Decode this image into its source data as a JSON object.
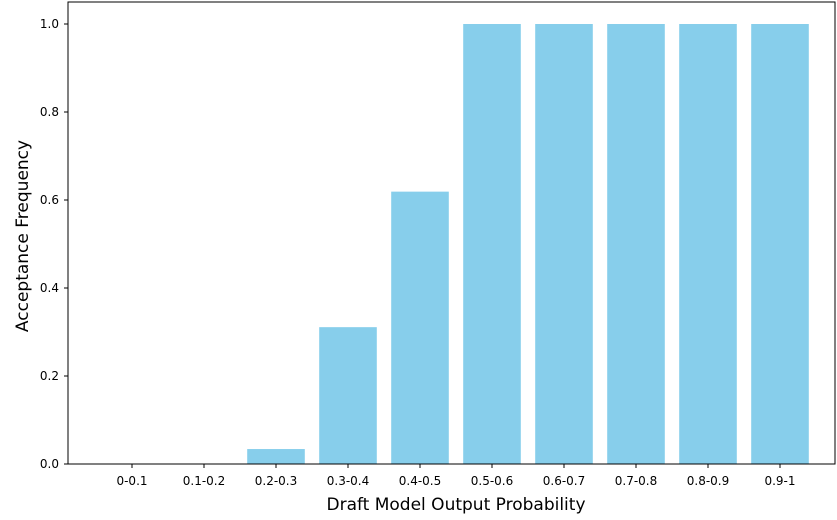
{
  "chart_data": {
    "type": "bar",
    "title": "",
    "xlabel": "Draft Model Output Probability",
    "ylabel": "Acceptance Frequency",
    "categories": [
      "0-0.1",
      "0.1-0.2",
      "0.2-0.3",
      "0.3-0.4",
      "0.4-0.5",
      "0.5-0.6",
      "0.6-0.7",
      "0.7-0.8",
      "0.8-0.9",
      "0.9-1"
    ],
    "values": [
      0.0,
      0.0,
      0.034,
      0.311,
      0.619,
      1.0,
      1.0,
      1.0,
      1.0,
      1.0
    ],
    "ylim": [
      0,
      1.05
    ],
    "yticks": [
      "0.0",
      "0.2",
      "0.4",
      "0.6",
      "0.8",
      "1.0"
    ],
    "grid": false,
    "bar_color": "#87CEEB"
  }
}
